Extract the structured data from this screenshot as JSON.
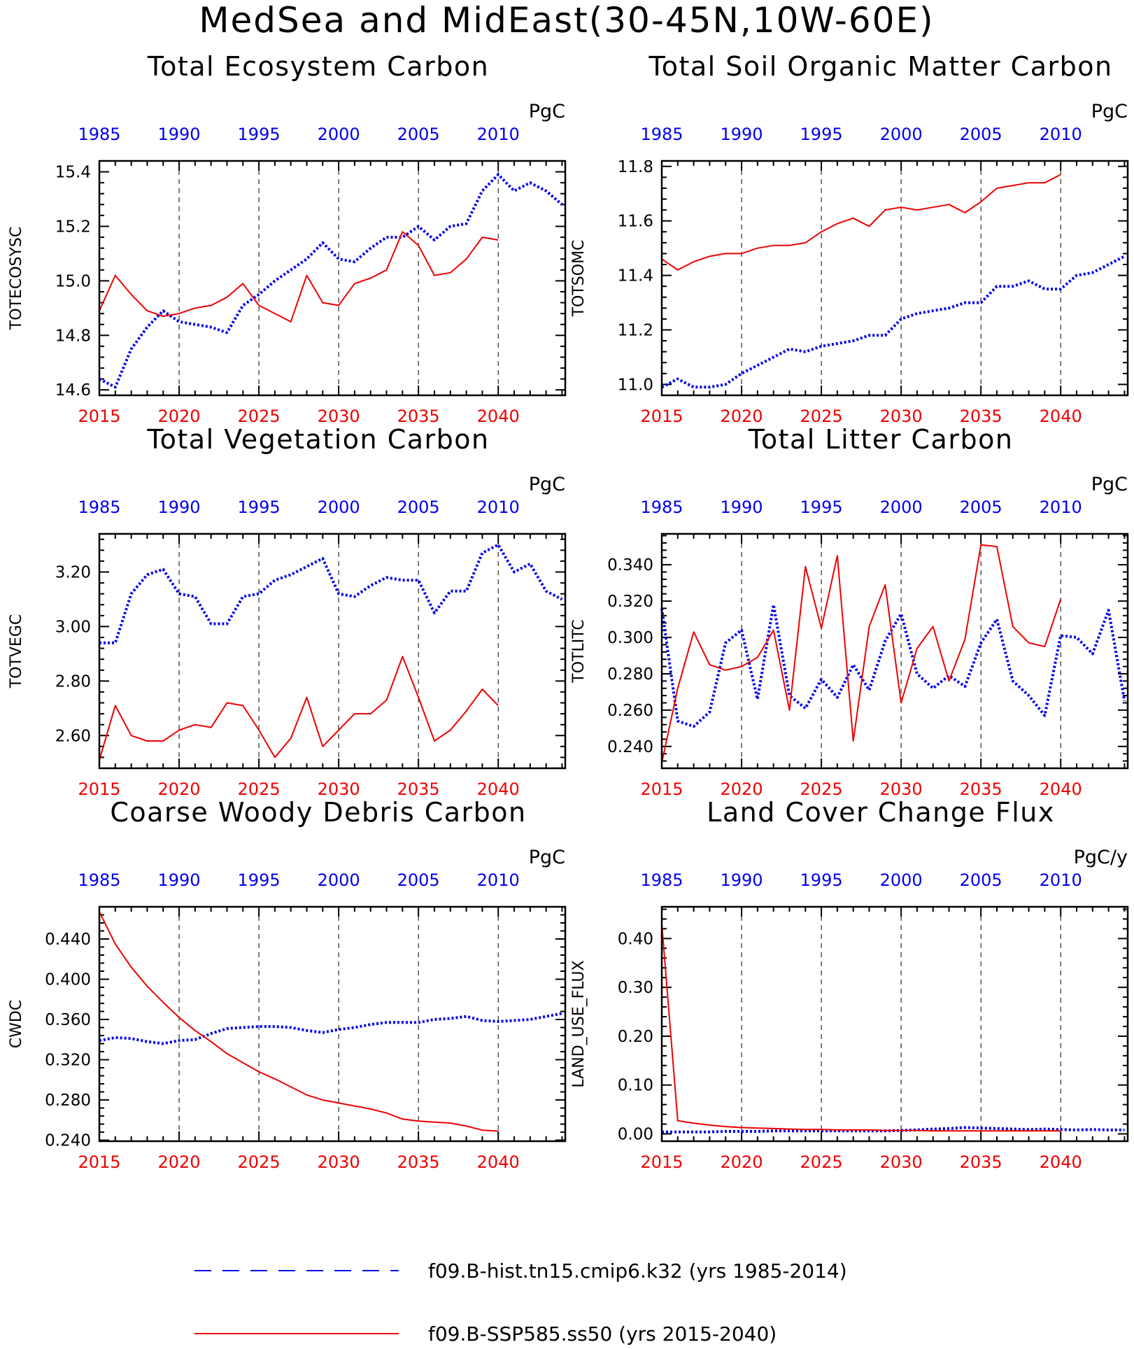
{
  "page_title": "MedSea and MidEast(30-45N,10W-60E)",
  "colors": {
    "hist": "#0000ee",
    "ssp": "#ee0000",
    "axis": "#000000"
  },
  "bottom_ticks": [
    "2015",
    "2020",
    "2025",
    "2030",
    "2035",
    "2040"
  ],
  "top_ticks": [
    "1985",
    "1990",
    "1995",
    "2000",
    "2005",
    "2010"
  ],
  "legend": {
    "hist_label": "f09.B-hist.tn15.cmip6.k32 (yrs 1985-2014)",
    "ssp_label": "f09.B-SSP585.ss50 (yrs 2015-2040)"
  },
  "chart_data": [
    {
      "type": "line",
      "title": "Total Ecosystem Carbon",
      "ylabel": "TOTECOSYSC",
      "units": "PgC",
      "ylim": [
        14.58,
        15.44
      ],
      "yticks": [
        14.6,
        14.8,
        15.0,
        15.2,
        15.4
      ],
      "ytick_labels": [
        "14.6",
        "14.8",
        "15.0",
        "15.2",
        "15.4"
      ],
      "minor_step": 0.04,
      "grid_vertical_dashed": true,
      "series": [
        {
          "name": "f09.B-hist.tn15.cmip6.k32 (yrs 1985-2014)",
          "style": "dotted",
          "color": "#0000ee",
          "x_label_years": [
            1985,
            1986,
            1987,
            1988,
            1989,
            1990,
            1991,
            1992,
            1993,
            1994,
            1995,
            1996,
            1997,
            1998,
            1999,
            2000,
            2001,
            2002,
            2003,
            2004,
            2005,
            2006,
            2007,
            2008,
            2009,
            2010,
            2011,
            2012,
            2013,
            2014
          ],
          "values": [
            14.64,
            14.61,
            14.75,
            14.83,
            14.89,
            14.85,
            14.84,
            14.83,
            14.81,
            14.91,
            14.95,
            15.0,
            15.04,
            15.08,
            15.14,
            15.08,
            15.07,
            15.12,
            15.16,
            15.16,
            15.2,
            15.15,
            15.2,
            15.21,
            15.33,
            15.39,
            15.33,
            15.36,
            15.33,
            15.28
          ]
        },
        {
          "name": "f09.B-SSP585.ss50 (yrs 2015-2040)",
          "style": "solid",
          "color": "#ee0000",
          "years": [
            2015,
            2016,
            2017,
            2018,
            2019,
            2020,
            2021,
            2022,
            2023,
            2024,
            2025,
            2026,
            2027,
            2028,
            2029,
            2030,
            2031,
            2032,
            2033,
            2034,
            2035,
            2036,
            2037,
            2038,
            2039,
            2040
          ],
          "values": [
            14.89,
            15.02,
            14.95,
            14.89,
            14.87,
            14.88,
            14.9,
            14.91,
            14.94,
            14.99,
            14.91,
            14.88,
            14.85,
            15.02,
            14.92,
            14.91,
            14.99,
            15.01,
            15.04,
            15.18,
            15.13,
            15.02,
            15.03,
            15.08,
            15.16,
            15.15
          ]
        }
      ]
    },
    {
      "type": "line",
      "title": "Total Soil Organic Matter Carbon",
      "ylabel": "TOTSOMC",
      "units": "PgC",
      "ylim": [
        10.96,
        11.82
      ],
      "yticks": [
        11.0,
        11.2,
        11.4,
        11.6,
        11.8
      ],
      "ytick_labels": [
        "11.0",
        "11.2",
        "11.4",
        "11.6",
        "11.8"
      ],
      "minor_step": 0.04,
      "grid_vertical_dashed": true,
      "series": [
        {
          "name": "f09.B-hist.tn15.cmip6.k32 (yrs 1985-2014)",
          "style": "dotted",
          "color": "#0000ee",
          "x_label_years": [
            1985,
            1986,
            1987,
            1988,
            1989,
            1990,
            1991,
            1992,
            1993,
            1994,
            1995,
            1996,
            1997,
            1998,
            1999,
            2000,
            2001,
            2002,
            2003,
            2004,
            2005,
            2006,
            2007,
            2008,
            2009,
            2010,
            2011,
            2012,
            2013,
            2014
          ],
          "values": [
            10.99,
            11.02,
            10.99,
            10.99,
            11.0,
            11.04,
            11.07,
            11.1,
            11.13,
            11.12,
            11.14,
            11.15,
            11.16,
            11.18,
            11.18,
            11.24,
            11.26,
            11.27,
            11.28,
            11.3,
            11.3,
            11.36,
            11.36,
            11.38,
            11.35,
            11.35,
            11.4,
            11.41,
            11.44,
            11.47
          ]
        },
        {
          "name": "f09.B-SSP585.ss50 (yrs 2015-2040)",
          "style": "solid",
          "color": "#ee0000",
          "years": [
            2015,
            2016,
            2017,
            2018,
            2019,
            2020,
            2021,
            2022,
            2023,
            2024,
            2025,
            2026,
            2027,
            2028,
            2029,
            2030,
            2031,
            2032,
            2033,
            2034,
            2035,
            2036,
            2037,
            2038,
            2039,
            2040
          ],
          "values": [
            11.46,
            11.42,
            11.45,
            11.47,
            11.48,
            11.48,
            11.5,
            11.51,
            11.51,
            11.52,
            11.56,
            11.59,
            11.61,
            11.58,
            11.64,
            11.65,
            11.64,
            11.65,
            11.66,
            11.63,
            11.67,
            11.72,
            11.73,
            11.74,
            11.74,
            11.77
          ]
        }
      ]
    },
    {
      "type": "line",
      "title": "Total Vegetation Carbon",
      "ylabel": "TOTVEGC",
      "units": "PgC",
      "ylim": [
        2.48,
        3.34
      ],
      "yticks": [
        2.6,
        2.8,
        3.0,
        3.2
      ],
      "ytick_labels": [
        "2.60",
        "2.80",
        "3.00",
        "3.20"
      ],
      "minor_step": 0.04,
      "grid_vertical_dashed": true,
      "series": [
        {
          "name": "f09.B-hist.tn15.cmip6.k32 (yrs 1985-2014)",
          "style": "dotted",
          "color": "#0000ee",
          "x_label_years": [
            1985,
            1986,
            1987,
            1988,
            1989,
            1990,
            1991,
            1992,
            1993,
            1994,
            1995,
            1996,
            1997,
            1998,
            1999,
            2000,
            2001,
            2002,
            2003,
            2004,
            2005,
            2006,
            2007,
            2008,
            2009,
            2010,
            2011,
            2012,
            2013,
            2014
          ],
          "values": [
            2.94,
            2.94,
            3.12,
            3.19,
            3.21,
            3.12,
            3.11,
            3.01,
            3.01,
            3.11,
            3.12,
            3.17,
            3.19,
            3.22,
            3.25,
            3.12,
            3.11,
            3.15,
            3.18,
            3.17,
            3.17,
            3.05,
            3.13,
            3.13,
            3.27,
            3.3,
            3.2,
            3.23,
            3.13,
            3.1
          ]
        },
        {
          "name": "f09.B-SSP585.ss50 (yrs 2015-2040)",
          "style": "solid",
          "color": "#ee0000",
          "years": [
            2015,
            2016,
            2017,
            2018,
            2019,
            2020,
            2021,
            2022,
            2023,
            2024,
            2025,
            2026,
            2027,
            2028,
            2029,
            2030,
            2031,
            2032,
            2033,
            2034,
            2035,
            2036,
            2037,
            2038,
            2039,
            2040
          ],
          "values": [
            2.51,
            2.71,
            2.6,
            2.58,
            2.58,
            2.62,
            2.64,
            2.63,
            2.72,
            2.71,
            2.62,
            2.52,
            2.59,
            2.74,
            2.56,
            2.62,
            2.68,
            2.68,
            2.73,
            2.89,
            2.74,
            2.58,
            2.62,
            2.69,
            2.77,
            2.71
          ]
        }
      ]
    },
    {
      "type": "line",
      "title": "Total Litter Carbon",
      "ylabel": "TOTLITC",
      "units": "PgC",
      "ylim": [
        0.228,
        0.357
      ],
      "yticks": [
        0.24,
        0.26,
        0.28,
        0.3,
        0.32,
        0.34
      ],
      "ytick_labels": [
        "0.240",
        "0.260",
        "0.280",
        "0.300",
        "0.320",
        "0.340"
      ],
      "minor_step": 0.004,
      "grid_vertical_dashed": true,
      "series": [
        {
          "name": "f09.B-hist.tn15.cmip6.k32 (yrs 1985-2014)",
          "style": "dotted",
          "color": "#0000ee",
          "x_label_years": [
            1985,
            1986,
            1987,
            1988,
            1989,
            1990,
            1991,
            1992,
            1993,
            1994,
            1995,
            1996,
            1997,
            1998,
            1999,
            2000,
            2001,
            2002,
            2003,
            2004,
            2005,
            2006,
            2007,
            2008,
            2009,
            2010,
            2011,
            2012,
            2013,
            2014
          ],
          "values": [
            0.316,
            0.254,
            0.251,
            0.259,
            0.297,
            0.304,
            0.266,
            0.318,
            0.268,
            0.261,
            0.277,
            0.267,
            0.285,
            0.271,
            0.298,
            0.313,
            0.28,
            0.272,
            0.279,
            0.273,
            0.297,
            0.31,
            0.276,
            0.268,
            0.257,
            0.301,
            0.3,
            0.291,
            0.315,
            0.265
          ]
        },
        {
          "name": "f09.B-SSP585.ss50 (yrs 2015-2040)",
          "style": "solid",
          "color": "#ee0000",
          "years": [
            2015,
            2016,
            2017,
            2018,
            2019,
            2020,
            2021,
            2022,
            2023,
            2024,
            2025,
            2026,
            2027,
            2028,
            2029,
            2030,
            2031,
            2032,
            2033,
            2034,
            2035,
            2036,
            2037,
            2038,
            2039,
            2040
          ],
          "values": [
            0.231,
            0.272,
            0.303,
            0.285,
            0.282,
            0.284,
            0.289,
            0.304,
            0.26,
            0.339,
            0.305,
            0.345,
            0.243,
            0.306,
            0.329,
            0.264,
            0.294,
            0.306,
            0.276,
            0.299,
            0.351,
            0.35,
            0.306,
            0.297,
            0.295,
            0.321
          ]
        }
      ]
    },
    {
      "type": "line",
      "title": "Coarse Woody Debris Carbon",
      "ylabel": "CWDC",
      "units": "PgC",
      "ylim": [
        0.239,
        0.472
      ],
      "yticks": [
        0.24,
        0.28,
        0.32,
        0.36,
        0.4,
        0.44
      ],
      "ytick_labels": [
        "0.240",
        "0.280",
        "0.320",
        "0.360",
        "0.400",
        "0.440"
      ],
      "minor_step": 0.008,
      "grid_vertical_dashed": true,
      "series": [
        {
          "name": "f09.B-hist.tn15.cmip6.k32 (yrs 1985-2014)",
          "style": "dotted",
          "color": "#0000ee",
          "x_label_years": [
            1985,
            1986,
            1987,
            1988,
            1989,
            1990,
            1991,
            1992,
            1993,
            1994,
            1995,
            1996,
            1997,
            1998,
            1999,
            2000,
            2001,
            2002,
            2003,
            2004,
            2005,
            2006,
            2007,
            2008,
            2009,
            2010,
            2011,
            2012,
            2013,
            2014
          ],
          "values": [
            0.339,
            0.342,
            0.341,
            0.338,
            0.336,
            0.339,
            0.34,
            0.346,
            0.351,
            0.352,
            0.353,
            0.353,
            0.352,
            0.349,
            0.347,
            0.35,
            0.352,
            0.355,
            0.357,
            0.357,
            0.357,
            0.36,
            0.361,
            0.363,
            0.359,
            0.358,
            0.359,
            0.36,
            0.363,
            0.366
          ]
        },
        {
          "name": "f09.B-SSP585.ss50 (yrs 2015-2040)",
          "style": "solid",
          "color": "#ee0000",
          "years": [
            2015,
            2016,
            2017,
            2018,
            2019,
            2020,
            2021,
            2022,
            2023,
            2024,
            2025,
            2026,
            2027,
            2028,
            2029,
            2030,
            2031,
            2032,
            2033,
            2034,
            2035,
            2036,
            2037,
            2038,
            2039,
            2040
          ],
          "values": [
            0.467,
            0.435,
            0.412,
            0.393,
            0.377,
            0.362,
            0.349,
            0.338,
            0.326,
            0.317,
            0.308,
            0.301,
            0.293,
            0.285,
            0.28,
            0.277,
            0.274,
            0.271,
            0.267,
            0.261,
            0.259,
            0.258,
            0.257,
            0.254,
            0.25,
            0.249
          ]
        }
      ]
    },
    {
      "type": "line",
      "title": "Land Cover Change Flux",
      "ylabel": "LAND_USE_FLUX",
      "units": "PgC/y",
      "ylim": [
        -0.015,
        0.465
      ],
      "yticks": [
        0.0,
        0.1,
        0.2,
        0.3,
        0.4
      ],
      "ytick_labels": [
        "0.00",
        "0.10",
        "0.20",
        "0.30",
        "0.40"
      ],
      "minor_step": 0.02,
      "grid_vertical_dashed": true,
      "series": [
        {
          "name": "f09.B-hist.tn15.cmip6.k32 (yrs 1985-2014)",
          "style": "dotted",
          "color": "#0000ee",
          "x_label_years": [
            1985,
            1986,
            1987,
            1988,
            1989,
            1990,
            1991,
            1992,
            1993,
            1994,
            1995,
            1996,
            1997,
            1998,
            1999,
            2000,
            2001,
            2002,
            2003,
            2004,
            2005,
            2006,
            2007,
            2008,
            2009,
            2010,
            2011,
            2012,
            2013,
            2014
          ],
          "values": [
            0.004,
            0.004,
            0.004,
            0.004,
            0.005,
            0.005,
            0.005,
            0.006,
            0.006,
            0.006,
            0.006,
            0.006,
            0.006,
            0.006,
            0.006,
            0.007,
            0.008,
            0.01,
            0.011,
            0.013,
            0.012,
            0.011,
            0.01,
            0.009,
            0.01,
            0.009,
            0.008,
            0.009,
            0.008,
            0.008
          ]
        },
        {
          "name": "f09.B-SSP585.ss50 (yrs 2015-2040)",
          "style": "solid",
          "color": "#ee0000",
          "years": [
            2015,
            2016,
            2017,
            2018,
            2019,
            2020,
            2021,
            2022,
            2023,
            2024,
            2025,
            2026,
            2027,
            2028,
            2029,
            2030,
            2031,
            2032,
            2033,
            2034,
            2035,
            2036,
            2037,
            2038,
            2039,
            2040
          ],
          "values": [
            0.43,
            0.027,
            0.022,
            0.018,
            0.015,
            0.013,
            0.012,
            0.011,
            0.01,
            0.009,
            0.009,
            0.008,
            0.008,
            0.008,
            0.007,
            0.007,
            0.007,
            0.006,
            0.006,
            0.006,
            0.006,
            0.006,
            0.006,
            0.006,
            0.006,
            0.006
          ]
        }
      ]
    }
  ]
}
